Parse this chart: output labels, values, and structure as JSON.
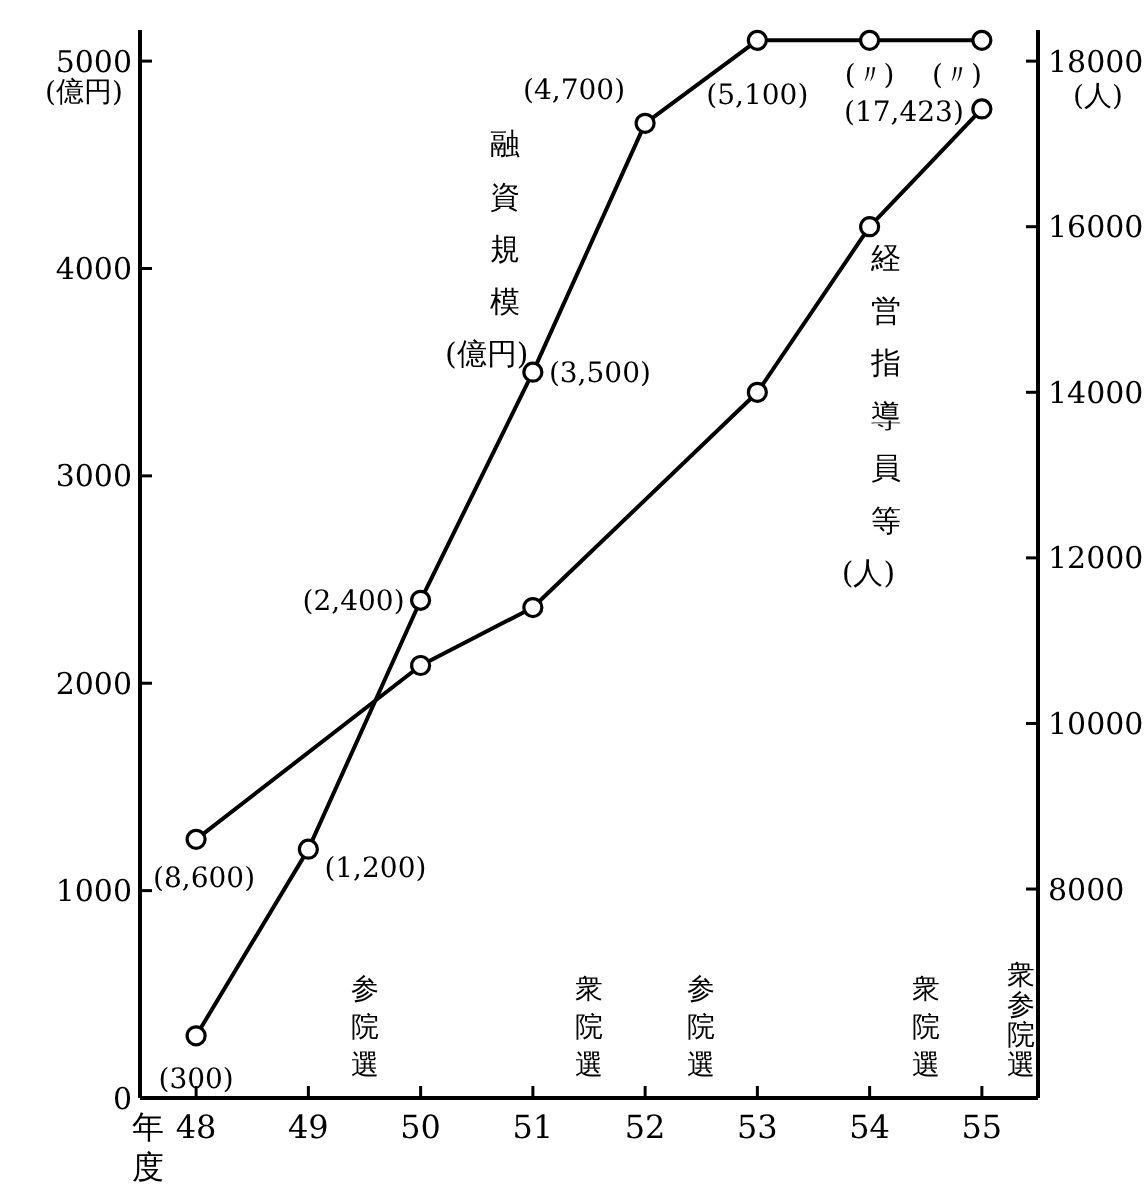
{
  "chart_data": {
    "type": "line",
    "xlabel": "年度",
    "ylabel": "(億円)",
    "y2label": "(人)",
    "xlim": [
      47.5,
      55.5
    ],
    "xticks": [
      48,
      49,
      50,
      51,
      52,
      53,
      54,
      55
    ],
    "ylim": [
      0,
      5150
    ],
    "yticks": [
      0,
      1000,
      2000,
      3000,
      4000,
      5000
    ],
    "y2lim": [
      5476,
      18376
    ],
    "y2ticks": [
      8000,
      10000,
      12000,
      14000,
      16000,
      18000
    ],
    "marker": "circle",
    "line_style": "solid",
    "series": [
      {
        "name": "融資規模(億円)",
        "color": "#000000",
        "x": [
          48,
          49,
          50,
          51,
          52,
          53,
          54,
          55
        ],
        "values": [
          300,
          1200,
          2400,
          3500,
          4700,
          5100,
          5100,
          5100
        ],
        "value_labels": [
          "(300)",
          "(1,200)",
          "(2,400)",
          "(3,500)",
          "(4,700)",
          "(5,100)",
          "(〃)",
          "(〃)"
        ]
      },
      {
        "name": "経営指導員等(人)",
        "color": "#000000",
        "axis": "y2",
        "x": [
          48,
          50,
          51,
          53,
          54,
          55
        ],
        "values": [
          8600,
          10700,
          11400,
          14000,
          16000,
          17423
        ],
        "value_labels": [
          "(8,600)",
          null,
          null,
          null,
          null,
          "(17,423)"
        ]
      }
    ],
    "annotations": [
      "参院選",
      "衆院選",
      "参院選",
      "衆院選",
      "衆参院選"
    ]
  }
}
